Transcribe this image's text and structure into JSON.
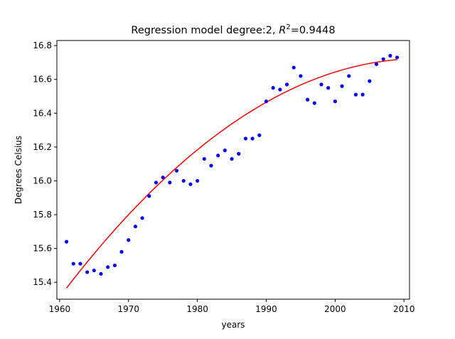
{
  "chart_data": {
    "type": "scatter",
    "title_main": "Regression model degree:2, ",
    "title_r": "R",
    "title_sup": "2",
    "title_value": "=0.9448",
    "xlabel": "years",
    "ylabel": "Degrees Celsius",
    "xlim": [
      1959.6,
      2010.8
    ],
    "ylim": [
      15.3,
      16.83
    ],
    "x_ticks": [
      1960,
      1970,
      1980,
      1990,
      2000,
      2010
    ],
    "y_ticks": [
      15.4,
      15.6,
      15.8,
      16.0,
      16.2,
      16.4,
      16.6,
      16.8
    ],
    "y_tick_labels": [
      "15.4",
      "15.6",
      "15.8",
      "16.0",
      "16.2",
      "16.4",
      "16.6",
      "16.8"
    ],
    "grid": false,
    "points_color": "#0000ff",
    "fit_color": "#ff0000",
    "points": [
      [
        1961,
        15.64
      ],
      [
        1962,
        15.51
      ],
      [
        1963,
        15.51
      ],
      [
        1964,
        15.46
      ],
      [
        1965,
        15.47
      ],
      [
        1966,
        15.45
      ],
      [
        1967,
        15.49
      ],
      [
        1968,
        15.5
      ],
      [
        1969,
        15.58
      ],
      [
        1970,
        15.65
      ],
      [
        1971,
        15.73
      ],
      [
        1972,
        15.78
      ],
      [
        1973,
        15.91
      ],
      [
        1974,
        15.99
      ],
      [
        1975,
        16.02
      ],
      [
        1976,
        15.99
      ],
      [
        1977,
        16.06
      ],
      [
        1978,
        16.0
      ],
      [
        1979,
        15.98
      ],
      [
        1980,
        16.0
      ],
      [
        1981,
        16.13
      ],
      [
        1982,
        16.09
      ],
      [
        1983,
        16.15
      ],
      [
        1984,
        16.18
      ],
      [
        1985,
        16.13
      ],
      [
        1986,
        16.16
      ],
      [
        1987,
        16.25
      ],
      [
        1988,
        16.25
      ],
      [
        1989,
        16.27
      ],
      [
        1990,
        16.47
      ],
      [
        1991,
        16.55
      ],
      [
        1992,
        16.54
      ],
      [
        1993,
        16.57
      ],
      [
        1994,
        16.67
      ],
      [
        1995,
        16.62
      ],
      [
        1996,
        16.48
      ],
      [
        1997,
        16.46
      ],
      [
        1998,
        16.57
      ],
      [
        1999,
        16.55
      ],
      [
        2000,
        16.47
      ],
      [
        2001,
        16.56
      ],
      [
        2002,
        16.62
      ],
      [
        2003,
        16.51
      ],
      [
        2004,
        16.51
      ],
      [
        2005,
        16.59
      ],
      [
        2006,
        16.69
      ],
      [
        2007,
        16.72
      ],
      [
        2008,
        16.74
      ],
      [
        2009,
        16.73
      ]
    ],
    "fit_quadratic": {
      "x0": 1961,
      "a": 15.366,
      "b": 0.05278,
      "c": -0.0005134,
      "x_from": 1961,
      "x_to": 2009
    }
  }
}
